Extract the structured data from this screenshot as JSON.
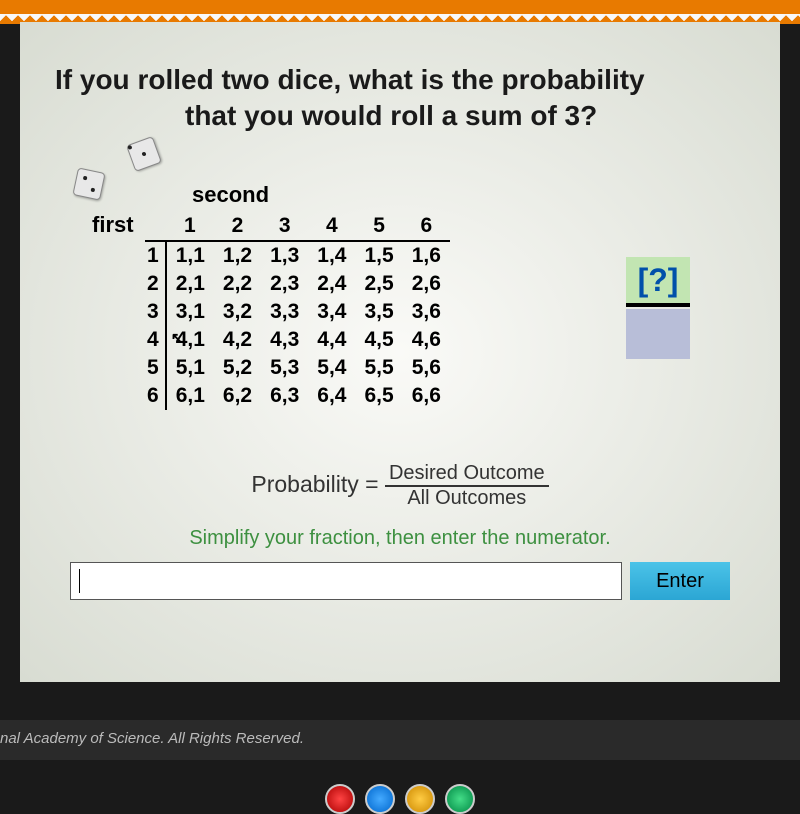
{
  "colors": {
    "top_bar": "#e87a00",
    "content_bg_center": "#fafaf7",
    "content_bg_edge": "#d8dcd2",
    "answer_num_bg": "#c2e5b2",
    "answer_num_fg": "#0050aa",
    "answer_den_bg": "#b8bed8",
    "instruction_fg": "#3d9040",
    "enter_btn_top": "#4bc3e8",
    "enter_btn_bot": "#2ba6d4"
  },
  "typography": {
    "question_fontsize": 28,
    "table_fontsize": 21,
    "formula_fontsize": 23,
    "instruction_fontsize": 20
  },
  "question": {
    "line1": "If you rolled two dice, what is the probability",
    "line2": "that you would roll a sum of 3?"
  },
  "table": {
    "col_label": "second",
    "row_label": "first",
    "col_headers": [
      "1",
      "2",
      "3",
      "4",
      "5",
      "6"
    ],
    "row_headers": [
      "1",
      "2",
      "3",
      "4",
      "5",
      "6"
    ],
    "cells": [
      [
        "1,1",
        "1,2",
        "1,3",
        "1,4",
        "1,5",
        "1,6"
      ],
      [
        "2,1",
        "2,2",
        "2,3",
        "2,4",
        "2,5",
        "2,6"
      ],
      [
        "3,1",
        "3,2",
        "3,3",
        "3,4",
        "3,5",
        "3,6"
      ],
      [
        "4,1",
        "4,2",
        "4,3",
        "4,4",
        "4,5",
        "4,6"
      ],
      [
        "5,1",
        "5,2",
        "5,3",
        "5,4",
        "5,5",
        "5,6"
      ],
      [
        "6,1",
        "6,2",
        "6,3",
        "6,4",
        "6,5",
        "6,6"
      ]
    ],
    "cursor_over_cell": "4,1"
  },
  "answer_widget": {
    "numerator_display": "[?]",
    "denominator_display": ""
  },
  "formula": {
    "lhs": "Probability =",
    "numer": "Desired Outcome",
    "denom": "All Outcomes"
  },
  "instruction": "Simplify your fraction, then enter the numerator.",
  "input": {
    "value": "",
    "placeholder": ""
  },
  "enter_label": "Enter",
  "footer": "nal Academy of Science. All Rights Reserved."
}
